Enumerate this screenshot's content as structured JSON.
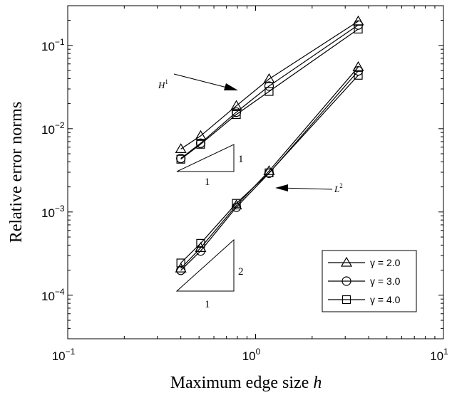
{
  "chart_data": {
    "type": "line",
    "xlabel": "Maximum edge size",
    "xlabel_symbol": "h",
    "ylabel": "Relative error norms",
    "x_scale": "log",
    "y_scale": "log",
    "xlim": [
      0.1,
      10
    ],
    "ylim": [
      3e-05,
      0.3
    ],
    "x_ticks": [
      {
        "base": "10",
        "exp": "−1",
        "value": 0.1
      },
      {
        "base": "10",
        "exp": "0",
        "value": 1
      },
      {
        "base": "10",
        "exp": "1",
        "value": 10
      }
    ],
    "y_ticks": [
      {
        "base": "10",
        "exp": "−4",
        "value": 0.0001
      },
      {
        "base": "10",
        "exp": "−3",
        "value": 0.001
      },
      {
        "base": "10",
        "exp": "−2",
        "value": 0.01
      },
      {
        "base": "10",
        "exp": "−1",
        "value": 0.1
      }
    ],
    "grid": false,
    "legend_position": "bottom-right",
    "x": [
      0.4,
      0.51,
      0.79,
      1.18,
      3.52
    ],
    "series": [
      {
        "name": "γ = 2.0",
        "marker": "triangle",
        "norm": "H1",
        "values": [
          0.0057,
          0.0082,
          0.0188,
          0.0395,
          0.195
        ]
      },
      {
        "name": "γ = 3.0",
        "marker": "circle",
        "norm": "H1",
        "values": [
          0.0044,
          0.0067,
          0.0158,
          0.0325,
          0.176
        ]
      },
      {
        "name": "γ = 4.0",
        "marker": "square",
        "norm": "H1",
        "values": [
          0.0043,
          0.0065,
          0.0148,
          0.028,
          0.157
        ]
      },
      {
        "name": "γ = 2.0",
        "marker": "triangle",
        "norm": "L2",
        "values": [
          0.00021,
          0.00037,
          0.0012,
          0.0031,
          0.055
        ]
      },
      {
        "name": "γ = 3.0",
        "marker": "circle",
        "norm": "L2",
        "values": [
          0.000199,
          0.00034,
          0.00114,
          0.00292,
          0.0495
        ]
      },
      {
        "name": "γ = 4.0",
        "marker": "square",
        "norm": "L2",
        "values": [
          0.000244,
          0.00042,
          0.00127,
          0.00295,
          0.0438
        ]
      }
    ],
    "annotations": {
      "h1_label": "H",
      "h1_sup": "1",
      "l2_label": "L",
      "l2_sup": "2",
      "slope1_rise": "1",
      "slope1_run": "1",
      "slope2_rise": "2",
      "slope2_run": "1"
    }
  }
}
